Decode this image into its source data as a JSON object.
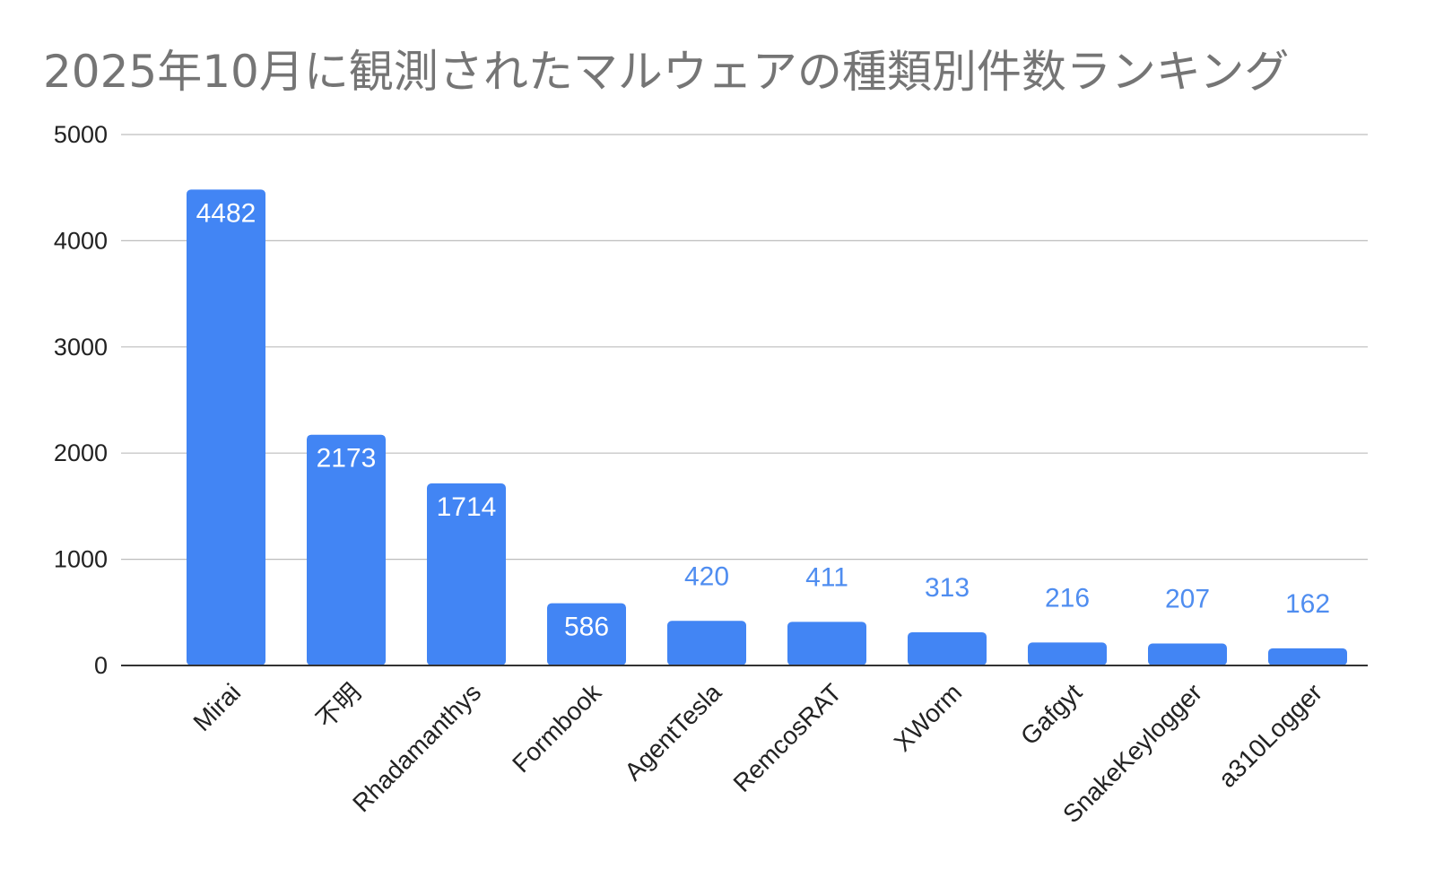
{
  "chart_data": {
    "type": "bar",
    "title": "2025年10月に観測されたマルウェアの種類別件数ランキング",
    "xlabel": "",
    "ylabel": "",
    "categories": [
      "Mirai",
      "不明",
      "Rhadamanthys",
      "Formbook",
      "AgentTesla",
      "RemcosRAT",
      "XWorm",
      "Gafgyt",
      "SnakeKeylogger",
      "a310Logger"
    ],
    "values": [
      4482,
      2173,
      1714,
      586,
      420,
      411,
      313,
      216,
      207,
      162
    ],
    "data_labels": [
      "4482",
      "2173",
      "1714",
      "586",
      "420",
      "411",
      "313",
      "216",
      "207",
      "162"
    ],
    "yticks": [
      "0",
      "1000",
      "2000",
      "3000",
      "4000",
      "5000"
    ],
    "ylim": [
      0,
      5000
    ],
    "grid": true,
    "legend": "none",
    "colors": {
      "bar": "#4285f4",
      "label_inside": "#ffffff",
      "label_outside": "#4f8df0",
      "gridline": "#bdbdbd",
      "axis": "#333333",
      "title": "#757575"
    }
  }
}
